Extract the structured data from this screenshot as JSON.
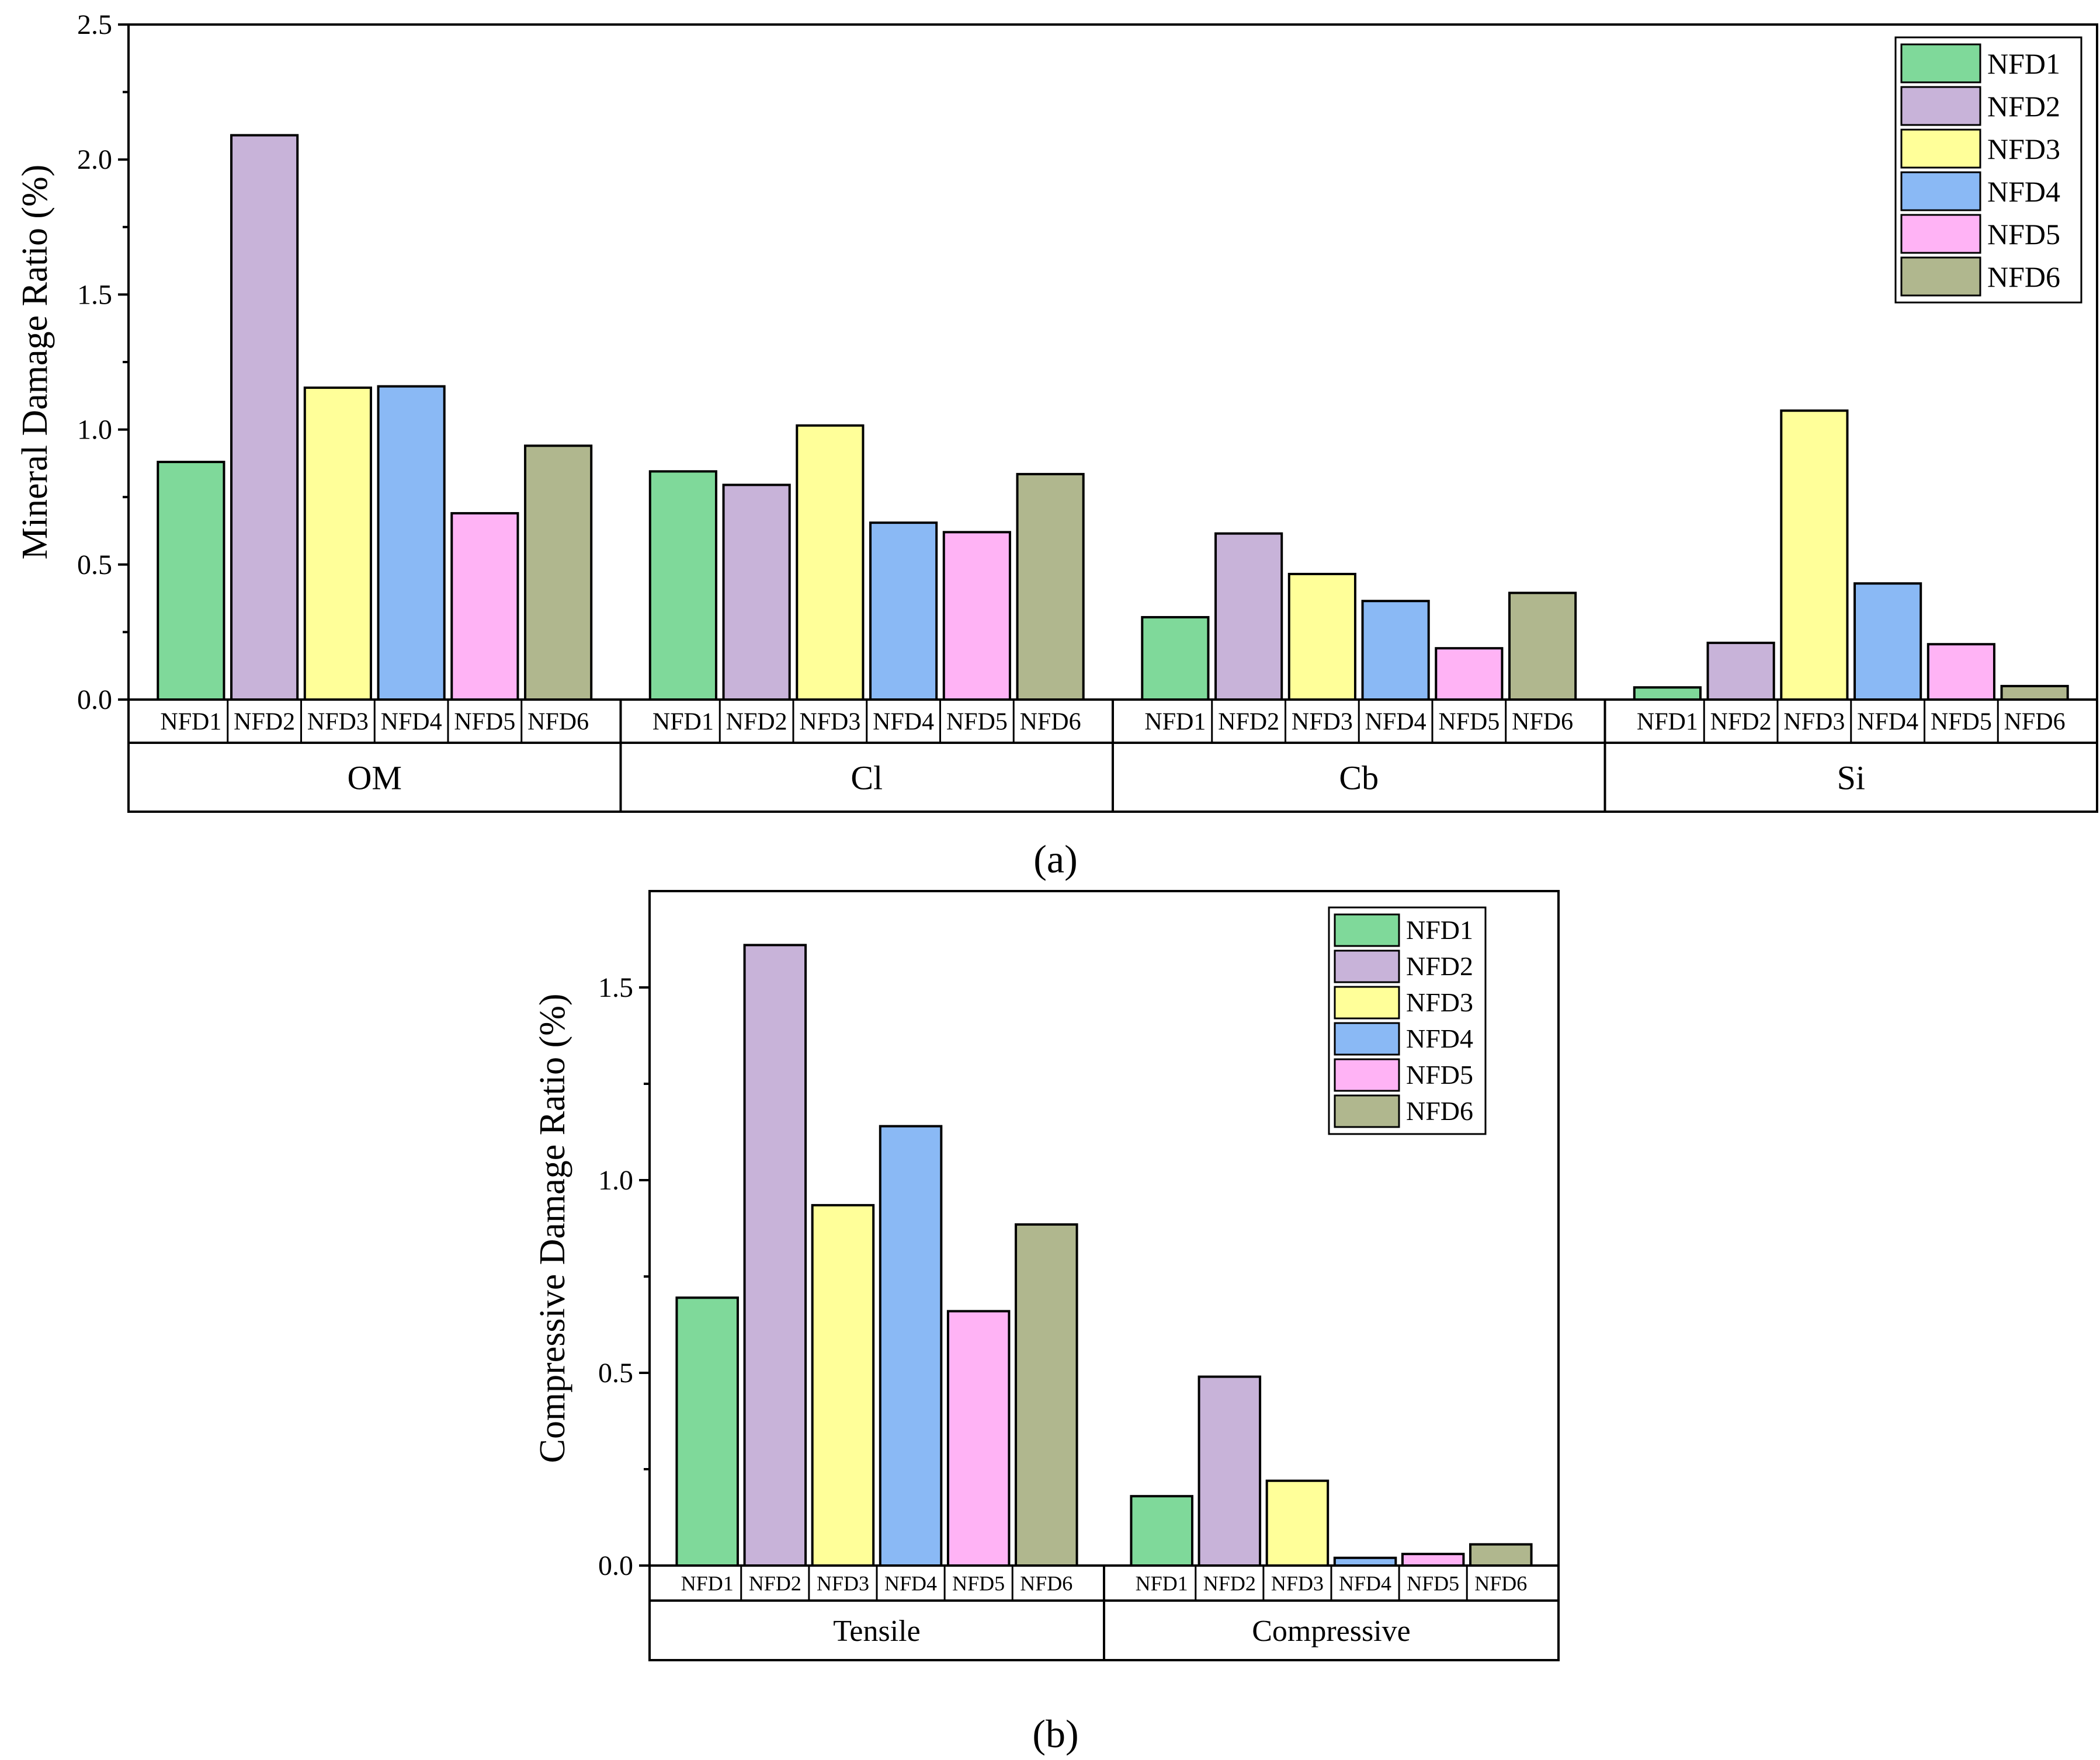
{
  "colors": {
    "NFD1": "#7fd99a",
    "NFD2": "#c8b3d9",
    "NFD3": "#ffff99",
    "NFD4": "#8ab9f5",
    "NFD5": "#ffb3f5",
    "NFD6": "#b0b78e"
  },
  "panel_a_label": "(a)",
  "panel_b_label": "(b)",
  "chart_data": [
    {
      "type": "bar",
      "panel": "a",
      "ylabel": "Mineral Damage Ratio (%)",
      "ylim": [
        0,
        2.5
      ],
      "yticks": [
        "0.0",
        "0.5",
        "1.0",
        "1.5",
        "2.0",
        "2.5"
      ],
      "legend": [
        "NFD1",
        "NFD2",
        "NFD3",
        "NFD4",
        "NFD5",
        "NFD6"
      ],
      "legend_position": "top-right",
      "groups": [
        {
          "name": "OM",
          "categories": [
            "NFD1",
            "NFD2",
            "NFD3",
            "NFD4",
            "NFD5",
            "NFD6"
          ],
          "values": [
            0.88,
            2.09,
            1.155,
            1.16,
            0.69,
            0.94
          ]
        },
        {
          "name": "Cl",
          "categories": [
            "NFD1",
            "NFD2",
            "NFD3",
            "NFD4",
            "NFD5",
            "NFD6"
          ],
          "values": [
            0.845,
            0.795,
            1.015,
            0.655,
            0.62,
            0.835
          ]
        },
        {
          "name": "Cb",
          "categories": [
            "NFD1",
            "NFD2",
            "NFD3",
            "NFD4",
            "NFD5",
            "NFD6"
          ],
          "values": [
            0.305,
            0.615,
            0.465,
            0.365,
            0.19,
            0.395
          ]
        },
        {
          "name": "Si",
          "categories": [
            "NFD1",
            "NFD2",
            "NFD3",
            "NFD4",
            "NFD5",
            "NFD6"
          ],
          "values": [
            0.045,
            0.21,
            1.07,
            0.43,
            0.205,
            0.05
          ]
        }
      ]
    },
    {
      "type": "bar",
      "panel": "b",
      "ylabel": "Compressive Damage Ratio (%)",
      "ylim": [
        0,
        1.75
      ],
      "yticks": [
        "0.0",
        "0.5",
        "1.0",
        "1.5"
      ],
      "legend": [
        "NFD1",
        "NFD2",
        "NFD3",
        "NFD4",
        "NFD5",
        "NFD6"
      ],
      "legend_position": "top-right",
      "groups": [
        {
          "name": "Tensile",
          "categories": [
            "NFD1",
            "NFD2",
            "NFD3",
            "NFD4",
            "NFD5",
            "NFD6"
          ],
          "values": [
            0.695,
            1.61,
            0.935,
            1.14,
            0.66,
            0.885
          ]
        },
        {
          "name": "Compressive",
          "categories": [
            "NFD1",
            "NFD2",
            "NFD3",
            "NFD4",
            "NFD5",
            "NFD6"
          ],
          "values": [
            0.18,
            0.49,
            0.22,
            0.02,
            0.03,
            0.055
          ]
        }
      ]
    }
  ]
}
